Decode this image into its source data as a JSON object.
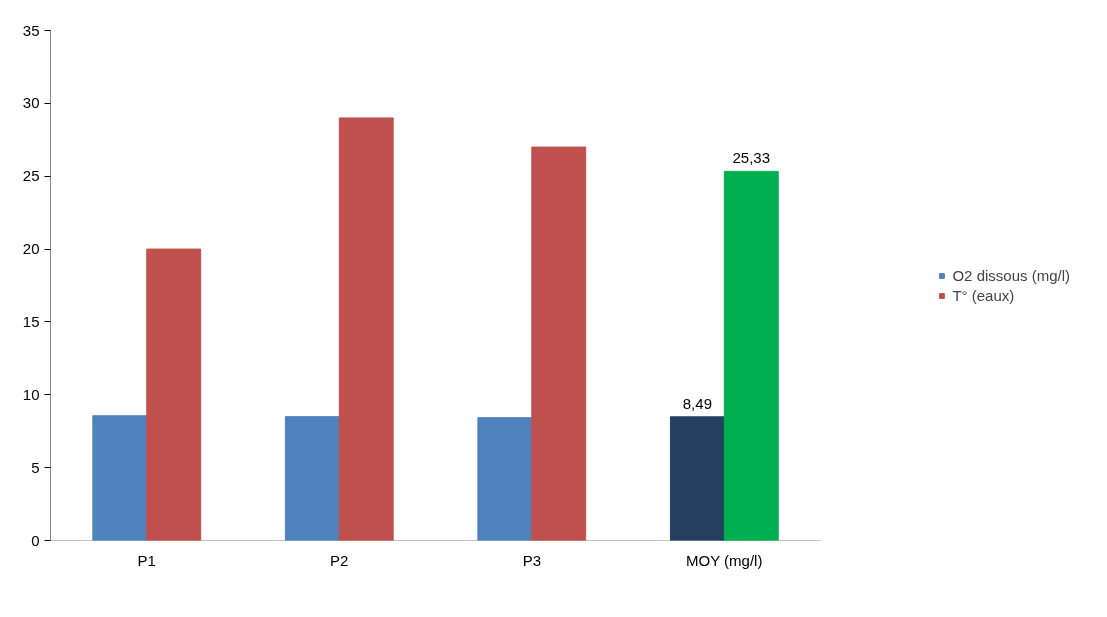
{
  "chart_data": {
    "type": "bar",
    "categories": [
      "P1",
      "P2",
      "P3",
      "MOY (mg/l)"
    ],
    "series": [
      {
        "name": "O2 dissous (mg/l)",
        "color": "#4f81bd",
        "colors": [
          "#4f81bd",
          "#4f81bd",
          "#4f81bd",
          "#243f60"
        ],
        "values": [
          8.56,
          8.5,
          8.43,
          8.49
        ],
        "value_labels": [
          null,
          null,
          null,
          "8,49"
        ]
      },
      {
        "name": "T° (eaux)",
        "color": "#c0504d",
        "colors": [
          "#c0504d",
          "#c0504d",
          "#c0504d",
          "#00b050"
        ],
        "values": [
          20,
          29,
          27,
          25.33
        ],
        "value_labels": [
          null,
          null,
          null,
          "25,33"
        ]
      }
    ],
    "ylim": [
      0,
      35
    ],
    "yticks": [
      0,
      5,
      10,
      15,
      20,
      25,
      30,
      35
    ],
    "grid": false,
    "legend": "right"
  }
}
